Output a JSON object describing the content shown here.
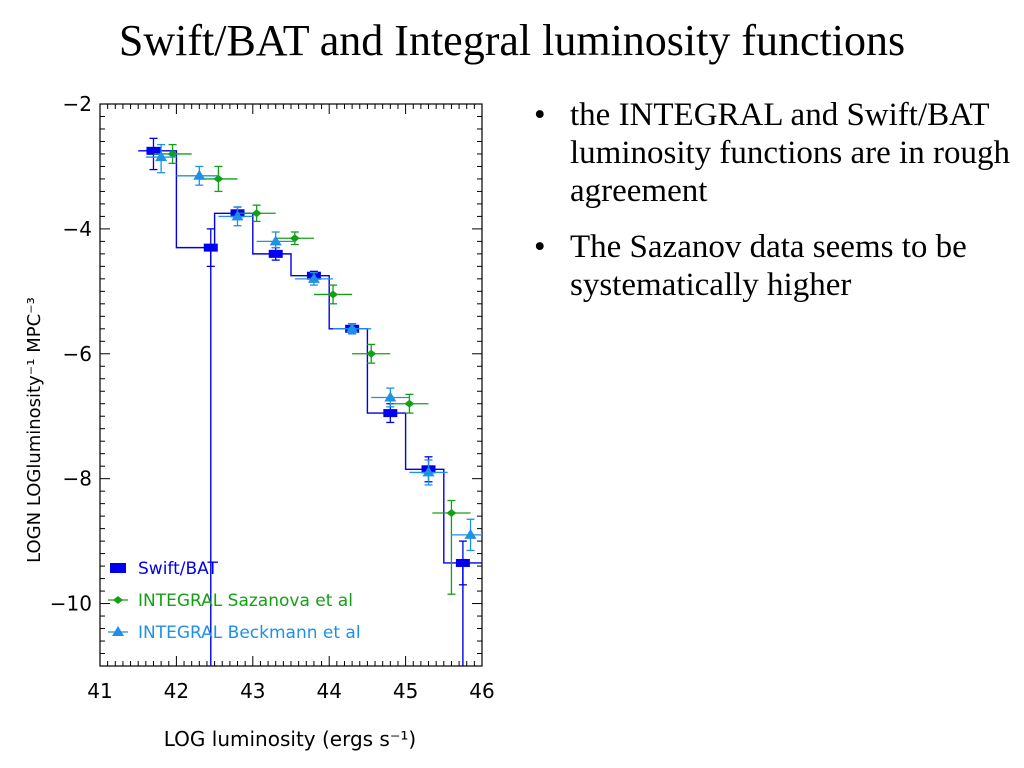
{
  "slide": {
    "title": "Swift/BAT and Integral luminosity functions",
    "bullets": [
      "the INTEGRAL and Swift/BAT luminosity functions are in rough agreement",
      "The Sazanov data seems to be systematically higher"
    ],
    "bullet_glyph": "•"
  },
  "chart_data": {
    "type": "scatter",
    "title": "",
    "xlabel": "LOG luminosity (ergs s⁻¹)",
    "ylabel": "LOGN LOGluminosity⁻¹ MPC⁻³",
    "xlim": [
      41,
      46
    ],
    "ylim": [
      -11,
      -2
    ],
    "xticks": [
      41,
      42,
      43,
      44,
      45,
      46
    ],
    "yticks": [
      -10,
      -8,
      -6,
      -4,
      -2
    ],
    "xtick_labels": [
      "41",
      "42",
      "43",
      "44",
      "45",
      "46"
    ],
    "ytick_labels": [
      "−10",
      "−8",
      "−6",
      "−4",
      "−2"
    ],
    "grid": false,
    "legend_position": "bottom-left",
    "series": [
      {
        "name": "Swift/BAT",
        "marker": "square",
        "color": "#0000ee",
        "step_line": true,
        "points": [
          {
            "x": 41.7,
            "y": -2.75,
            "xlo": 41.5,
            "xhi": 42.0,
            "ylo": -3.05,
            "yhi": -2.55
          },
          {
            "x": 42.45,
            "y": -4.3,
            "xlo": 42.0,
            "xhi": 42.5,
            "ylo": -4.6,
            "yhi": -4.0
          },
          {
            "x": 42.8,
            "y": -3.75,
            "xlo": 42.5,
            "xhi": 43.0,
            "ylo": -3.85,
            "yhi": -3.65
          },
          {
            "x": 43.3,
            "y": -4.4,
            "xlo": 43.0,
            "xhi": 43.5,
            "ylo": -4.5,
            "yhi": -4.3
          },
          {
            "x": 43.8,
            "y": -4.75,
            "xlo": 43.5,
            "xhi": 44.0,
            "ylo": -4.82,
            "yhi": -4.68
          },
          {
            "x": 44.3,
            "y": -5.6,
            "xlo": 44.0,
            "xhi": 44.5,
            "ylo": -5.68,
            "yhi": -5.52
          },
          {
            "x": 44.8,
            "y": -6.95,
            "xlo": 44.5,
            "xhi": 45.0,
            "ylo": -7.1,
            "yhi": -6.8
          },
          {
            "x": 45.3,
            "y": -7.85,
            "xlo": 45.0,
            "xhi": 45.5,
            "ylo": -8.05,
            "yhi": -7.65
          },
          {
            "x": 45.75,
            "y": -9.35,
            "xlo": 45.5,
            "xhi": 46.0,
            "ylo": -9.7,
            "yhi": -9.0
          }
        ],
        "step_extra": {
          "drop_x": 42.45,
          "drop_x2": 45.75
        }
      },
      {
        "name": "INTEGRAL Sazanova et al",
        "marker": "diamond",
        "color": "#14a014",
        "step_line": false,
        "points": [
          {
            "x": 41.95,
            "y": -2.8,
            "xlo": 41.7,
            "xhi": 42.2,
            "ylo": -2.95,
            "yhi": -2.65
          },
          {
            "x": 42.55,
            "y": -3.2,
            "xlo": 42.3,
            "xhi": 42.8,
            "ylo": -3.4,
            "yhi": -3.0
          },
          {
            "x": 43.05,
            "y": -3.75,
            "xlo": 42.8,
            "xhi": 43.3,
            "ylo": -3.88,
            "yhi": -3.62
          },
          {
            "x": 43.55,
            "y": -4.15,
            "xlo": 43.3,
            "xhi": 43.8,
            "ylo": -4.25,
            "yhi": -4.05
          },
          {
            "x": 44.05,
            "y": -5.05,
            "xlo": 43.8,
            "xhi": 44.3,
            "ylo": -5.2,
            "yhi": -4.9
          },
          {
            "x": 44.55,
            "y": -6.0,
            "xlo": 44.3,
            "xhi": 44.8,
            "ylo": -6.15,
            "yhi": -5.85
          },
          {
            "x": 45.05,
            "y": -6.8,
            "xlo": 44.8,
            "xhi": 45.3,
            "ylo": -6.95,
            "yhi": -6.65
          },
          {
            "x": 45.6,
            "y": -8.55,
            "xlo": 45.35,
            "xhi": 45.85,
            "ylo": -9.85,
            "yhi": -8.35
          }
        ]
      },
      {
        "name": "INTEGRAL Beckmann et al",
        "marker": "triangle",
        "color": "#1e90e6",
        "step_line": false,
        "points": [
          {
            "x": 41.8,
            "y": -2.85,
            "xlo": 41.6,
            "xhi": 42.0,
            "ylo": -3.1,
            "yhi": -2.65
          },
          {
            "x": 42.3,
            "y": -3.15,
            "xlo": 42.0,
            "xhi": 42.55,
            "ylo": -3.3,
            "yhi": -3.0
          },
          {
            "x": 42.8,
            "y": -3.8,
            "xlo": 42.55,
            "xhi": 43.0,
            "ylo": -3.95,
            "yhi": -3.65
          },
          {
            "x": 43.3,
            "y": -4.2,
            "xlo": 43.05,
            "xhi": 43.55,
            "ylo": -4.3,
            "yhi": -4.05
          },
          {
            "x": 43.8,
            "y": -4.8,
            "xlo": 43.55,
            "xhi": 44.05,
            "ylo": -4.9,
            "yhi": -4.7
          },
          {
            "x": 44.3,
            "y": -5.6,
            "xlo": 44.05,
            "xhi": 44.55,
            "ylo": -5.68,
            "yhi": -5.52
          },
          {
            "x": 44.8,
            "y": -6.7,
            "xlo": 44.55,
            "xhi": 45.05,
            "ylo": -6.85,
            "yhi": -6.55
          },
          {
            "x": 45.3,
            "y": -7.9,
            "xlo": 45.05,
            "xhi": 45.55,
            "ylo": -8.1,
            "yhi": -7.7
          },
          {
            "x": 45.85,
            "y": -8.9,
            "xlo": 45.6,
            "xhi": 46.0,
            "ylo": -9.15,
            "yhi": -8.65
          }
        ]
      }
    ]
  }
}
